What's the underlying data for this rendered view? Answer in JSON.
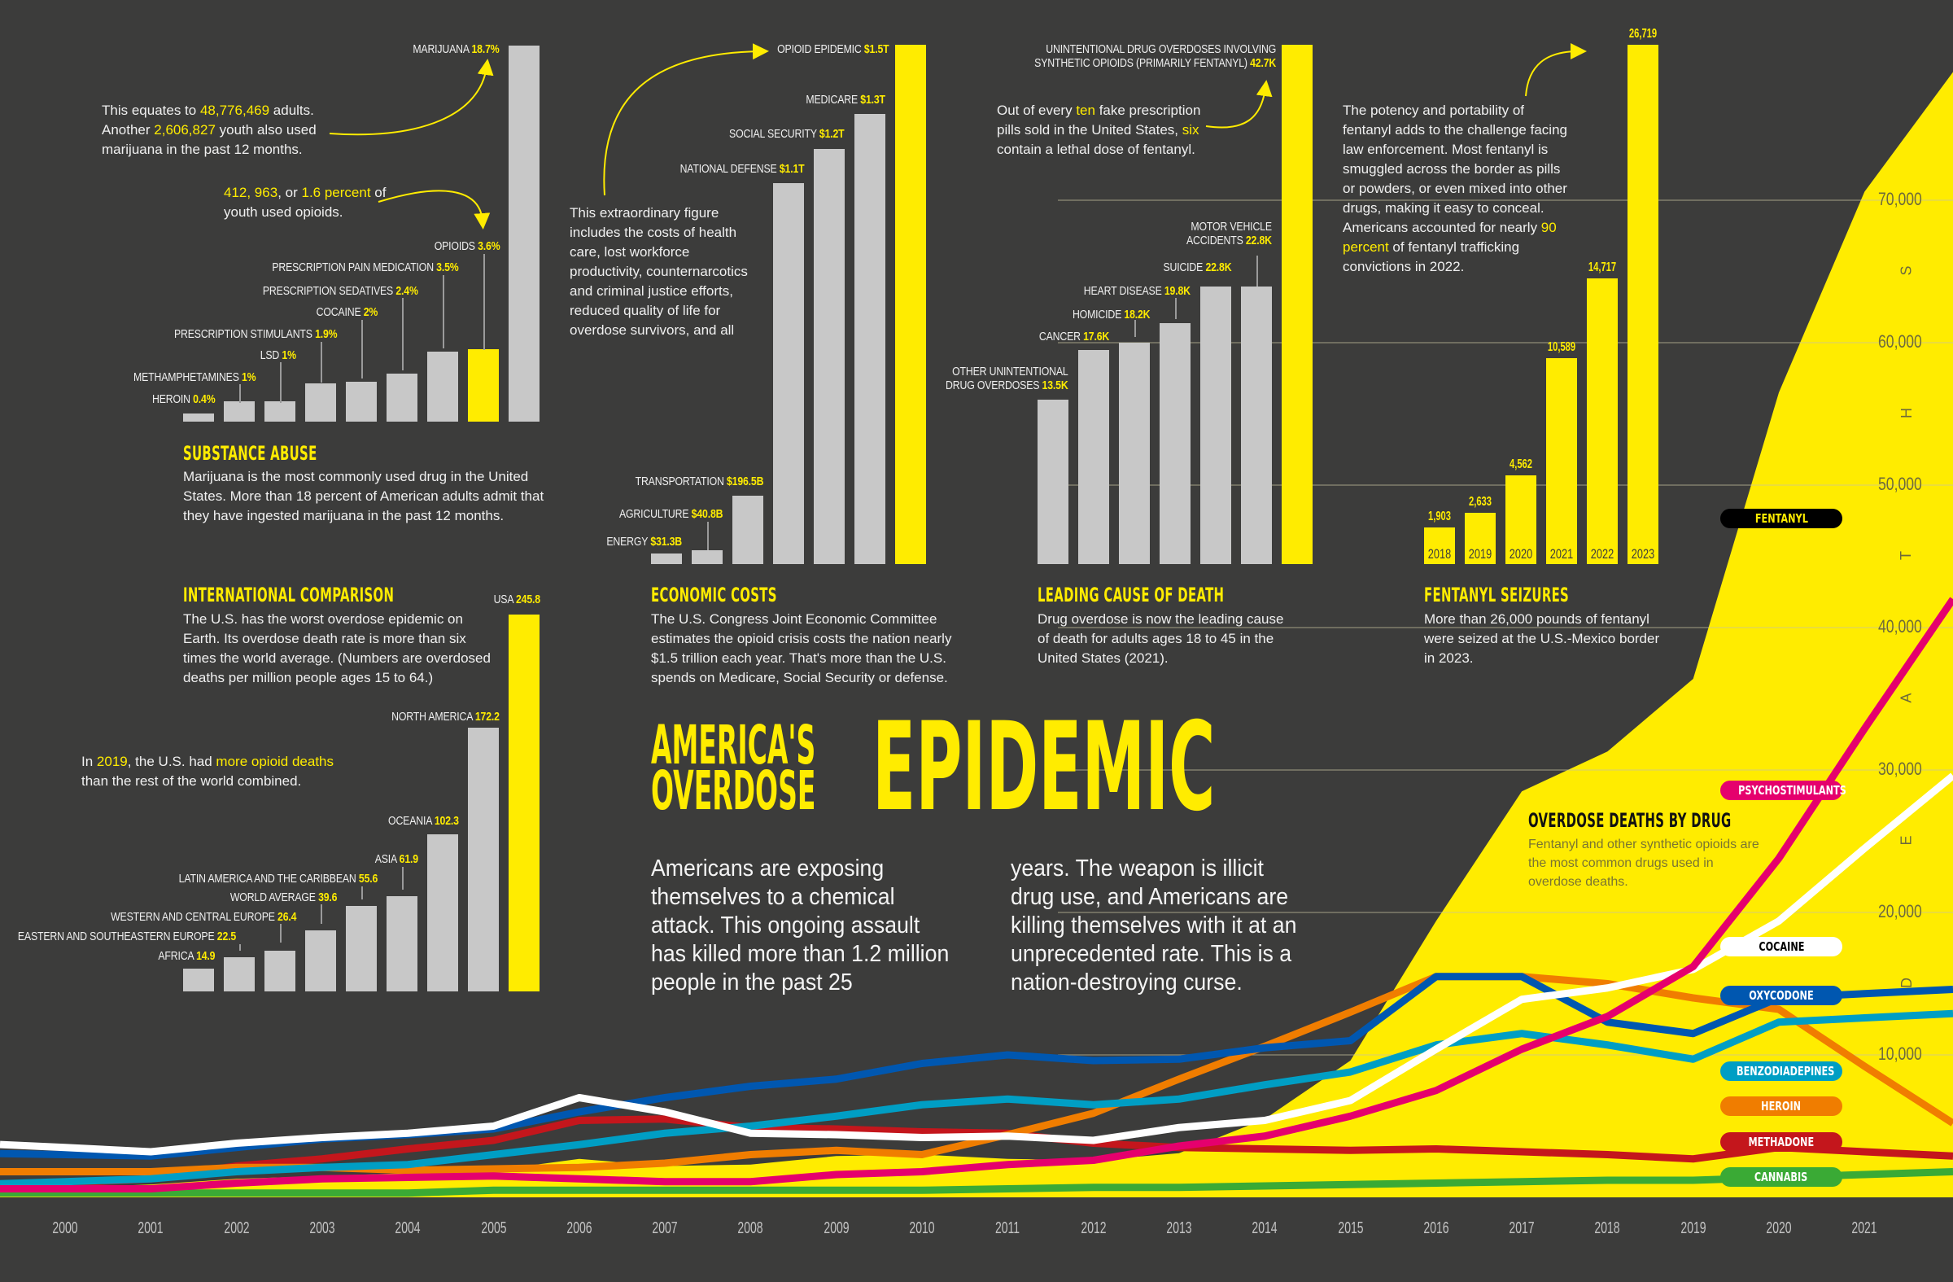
{
  "title": {
    "line1": "AMERICA'S",
    "line2": "OVERDOSE",
    "big": "EPIDEMIC",
    "intro_col1": "Americans are exposing themselves to a chemical attack. This ongoing assault has killed more than 1.2 million people in the past 25",
    "intro_col2": "years. The weapon is illicit drug use, and Americans are killing themselves with it at an unprecedented rate. This is a nation-destroying curse."
  },
  "substance_abuse": {
    "heading": "SUBSTANCE ABUSE",
    "text": "Marijuana is the most commonly used drug in the United States. More than 18 percent of American adults admit that they have ingested marijuana in the past 12 months.",
    "note1": {
      "pre": "This equates to ",
      "h1": "48,776,469",
      "mid": " adults. Another ",
      "h2": "2,606,827",
      "post": " youth also used marijuana in the past 12 months."
    },
    "note2": {
      "h1": "412, 963",
      "mid": ", or ",
      "h2": "1.6 percent",
      "post": " of youth used opioids."
    }
  },
  "economic_costs": {
    "heading": "ECONOMIC COSTS",
    "text": "The U.S. Congress Joint Economic Committee estimates the opioid crisis costs the nation nearly $1.5 trillion each year. That's more than the U.S. spends on Medicare, Social Security or defense.",
    "note": "This extraordinary figure includes the costs of health care, lost workforce productivity, counternarcotics and criminal justice efforts, reduced quality of life for overdose survivors, and all"
  },
  "leading_cause": {
    "heading": "LEADING CAUSE OF DEATH",
    "text": "Drug overdose is now the leading cause of death for adults ages 18 to 45 in the United States (2021).",
    "note": {
      "pre": "Out of every ",
      "h1": "ten",
      "mid": " fake prescription pills sold in the United States, ",
      "h2": "six",
      "post": " contain a lethal dose of fentanyl."
    }
  },
  "fentanyl_seizures": {
    "heading": "FENTANYL SEIZURES",
    "text": "More than 26,000 pounds of fentanyl were seized at the U.S.-Mexico border in 2023.",
    "note": {
      "pre": "The potency and portability of fentanyl adds to the challenge facing law enforcement. Most fentanyl is smuggled across the border as pills or powders, or even mixed into other drugs, making it easy to conceal. Americans accounted for nearly ",
      "h1": "90 percent",
      "post": " of fentanyl trafficking convictions in 2022."
    }
  },
  "international": {
    "heading": "INTERNATIONAL COMPARISON",
    "text": "The U.S. has the worst overdose epidemic on Earth. Its overdose death rate is more than six times the world average. (Numbers are overdosed deaths per million people ages 15 to 64.)",
    "note": {
      "pre": "In ",
      "h1": "2019",
      "mid": ", the U.S. had ",
      "h2": "more opioid deaths",
      "post": " than the rest of the world combined."
    }
  },
  "overdose_by_drug": {
    "heading": "OVERDOSE DEATHS BY DRUG",
    "text": "Fentanyl and other synthetic opioids are the most common drugs used in overdose deaths.",
    "axis_word": "DEATHS"
  },
  "colors": {
    "background": "#3c3c3b",
    "accent": "#ffec00",
    "bar_gray": "#c8c8c8"
  },
  "chart_data": [
    {
      "type": "bar",
      "title": "SUBSTANCE ABUSE",
      "unit": "%",
      "categories": [
        "HEROIN",
        "METHAMPHETAMINES",
        "LSD",
        "PRESCRIPTION STIMULANTS",
        "COCAINE",
        "PRESCRIPTION SEDATIVES",
        "PRESCRIPTION PAIN MEDICATION",
        "OPIOIDS",
        "MARIJUANA"
      ],
      "values": [
        0.4,
        1,
        1,
        1.9,
        2,
        2.4,
        3.5,
        3.6,
        18.7
      ],
      "labels": [
        "0.4%",
        "1%",
        "1%",
        "1.9%",
        "2%",
        "2.4%",
        "3.5%",
        "3.6%",
        "18.7%"
      ],
      "highlight": [
        "OPIOIDS"
      ],
      "ylim": [
        0,
        18.7
      ]
    },
    {
      "type": "bar",
      "title": "ECONOMIC COSTS",
      "unit": "USD billions",
      "categories": [
        "ENERGY",
        "AGRICULTURE",
        "TRANSPORTATION",
        "NATIONAL DEFENSE",
        "SOCIAL SECURITY",
        "MEDICARE",
        "OPIOID EPIDEMIC"
      ],
      "values": [
        31.3,
        40.8,
        196.5,
        1100,
        1200,
        1300,
        1500
      ],
      "labels": [
        "$31.3B",
        "$40.8B",
        "$196.5B",
        "$1.1T",
        "$1.2T",
        "$1.3T",
        "$1.5T"
      ],
      "highlight": [
        "OPIOID EPIDEMIC"
      ],
      "ylim": [
        0,
        1500
      ]
    },
    {
      "type": "bar",
      "title": "LEADING CAUSE OF DEATH",
      "unit": "thousand deaths",
      "categories": [
        "OTHER UNINTENTIONAL DRUG OVERDOSES",
        "CANCER",
        "HOMICIDE",
        "HEART DISEASE",
        "SUICIDE",
        "MOTOR VEHICLE ACCIDENTS",
        "UNINTENTIONAL DRUG OVERDOSES INVOLVING SYNTHETIC OPIOIDS (PRIMARILY FENTANYL)"
      ],
      "values": [
        13.5,
        17.6,
        18.2,
        19.8,
        22.8,
        22.8,
        42.7
      ],
      "labels": [
        "13.5K",
        "17.6K",
        "18.2K",
        "19.8K",
        "22.8K",
        "22.8K",
        "42.7K"
      ],
      "highlight": [
        "UNINTENTIONAL DRUG OVERDOSES INVOLVING SYNTHETIC OPIOIDS (PRIMARILY FENTANYL)"
      ],
      "ylim": [
        0,
        42.7
      ]
    },
    {
      "type": "bar",
      "title": "FENTANYL SEIZURES",
      "unit": "pounds",
      "categories": [
        "2018",
        "2019",
        "2020",
        "2021",
        "2022",
        "2023"
      ],
      "values": [
        1903,
        2633,
        4562,
        10589,
        14717,
        26719
      ],
      "labels": [
        "1,903",
        "2,633",
        "4,562",
        "10,589",
        "14,717",
        "26,719"
      ],
      "ylim": [
        0,
        26719
      ]
    },
    {
      "type": "bar",
      "title": "INTERNATIONAL COMPARISON",
      "unit": "overdose deaths per million people ages 15 to 64",
      "categories": [
        "AFRICA",
        "EASTERN AND SOUTHEASTERN EUROPE",
        "WESTERN AND CENTRAL EUROPE",
        "WORLD AVERAGE",
        "LATIN AMERICA AND THE CARIBBEAN",
        "ASIA",
        "OCEANIA",
        "NORTH AMERICA",
        "USA"
      ],
      "values": [
        14.9,
        22.5,
        26.4,
        39.6,
        55.6,
        61.9,
        102.3,
        172.2,
        245.8
      ],
      "labels": [
        "14.9",
        "22.5",
        "26.4",
        "39.6",
        "55.6",
        "61.9",
        "102.3",
        "172.2",
        "245.8"
      ],
      "highlight": [
        "USA"
      ],
      "ylim": [
        0,
        245.8
      ]
    },
    {
      "type": "line",
      "title": "OVERDOSE DEATHS BY DRUG",
      "ylabel": "DEATHS",
      "xlabel": "",
      "ylim": [
        0,
        75000
      ],
      "yticks": [
        10000,
        20000,
        30000,
        40000,
        50000,
        60000,
        70000
      ],
      "ytick_labels": [
        "10,000",
        "20,000",
        "30,000",
        "40,000",
        "50,000",
        "60,000",
        "70,000"
      ],
      "x": [
        "2000",
        "2001",
        "2002",
        "2003",
        "2004",
        "2005",
        "2006",
        "2007",
        "2008",
        "2009",
        "2010",
        "2011",
        "2012",
        "2013",
        "2014",
        "2015",
        "2016",
        "2017",
        "2018",
        "2019",
        "2020",
        "2021"
      ],
      "grid": true,
      "legend": "right",
      "series": [
        {
          "name": "FENTANYL",
          "style": "area",
          "color": "#ffec00",
          "text_color": "#ffec00",
          "pill": "#000000",
          "values": [
            700,
            900,
            1300,
            1500,
            1700,
            1900,
            2700,
            2200,
            2300,
            2900,
            3000,
            2700,
            2600,
            3100,
            5500,
            9600,
            19400,
            28500,
            31300,
            36400,
            56500,
            70600
          ]
        },
        {
          "name": "PSYCHOSTIMULANTS",
          "color": "#e5006d",
          "text_color": "#ffffff",
          "values": [
            600,
            600,
            1000,
            1300,
            1400,
            1500,
            1300,
            1100,
            1100,
            1600,
            1800,
            2300,
            2600,
            3600,
            4300,
            5700,
            7500,
            10400,
            12700,
            16200,
            23800,
            32900
          ]
        },
        {
          "name": "COCAINE",
          "color": "#ffffff",
          "text_color": "#000000",
          "values": [
            3500,
            3200,
            3800,
            4200,
            4500,
            5000,
            7000,
            6000,
            4500,
            4400,
            4200,
            4300,
            4000,
            4900,
            5400,
            6800,
            10400,
            13900,
            14700,
            16000,
            19400,
            24500
          ]
        },
        {
          "name": "OXYCODONE",
          "color": "#0057b0",
          "text_color": "#ffffff",
          "values": [
            3000,
            2900,
            3500,
            4100,
            4400,
            4800,
            6000,
            7000,
            7800,
            8300,
            9400,
            10000,
            9600,
            9700,
            10500,
            11000,
            15500,
            15500,
            12300,
            11500,
            14000,
            14300
          ]
        },
        {
          "name": "BENZODIADEPINES",
          "color": "#009ec4",
          "text_color": "#ffffff",
          "values": [
            1100,
            1300,
            1800,
            2100,
            2300,
            3000,
            3700,
            4500,
            5000,
            5700,
            6500,
            6900,
            6500,
            6900,
            7900,
            8800,
            10700,
            11500,
            10700,
            9700,
            12300,
            12600
          ]
        },
        {
          "name": "HEROIN",
          "color": "#f07d00",
          "text_color": "#ffffff",
          "values": [
            1800,
            1800,
            2100,
            2100,
            1900,
            2000,
            2100,
            2400,
            3000,
            3300,
            3000,
            4400,
            5900,
            8300,
            10600,
            13000,
            15500,
            15500,
            15000,
            14000,
            13200,
            9200
          ]
        },
        {
          "name": "METHADONE",
          "color": "#c4161c",
          "text_color": "#ffffff",
          "values": [
            1000,
            1300,
            2200,
            2700,
            3400,
            4000,
            5400,
            5500,
            4900,
            4800,
            4600,
            4500,
            3800,
            3500,
            3400,
            3300,
            3400,
            3200,
            3000,
            2700,
            3500,
            3200
          ]
        },
        {
          "name": "CANNABIS",
          "color": "#3aaa35",
          "text_color": "#ffffff",
          "values": [
            300,
            300,
            300,
            300,
            300,
            500,
            500,
            500,
            500,
            500,
            500,
            600,
            700,
            700,
            800,
            900,
            1000,
            1100,
            1200,
            1200,
            1400,
            1600
          ]
        }
      ]
    }
  ]
}
